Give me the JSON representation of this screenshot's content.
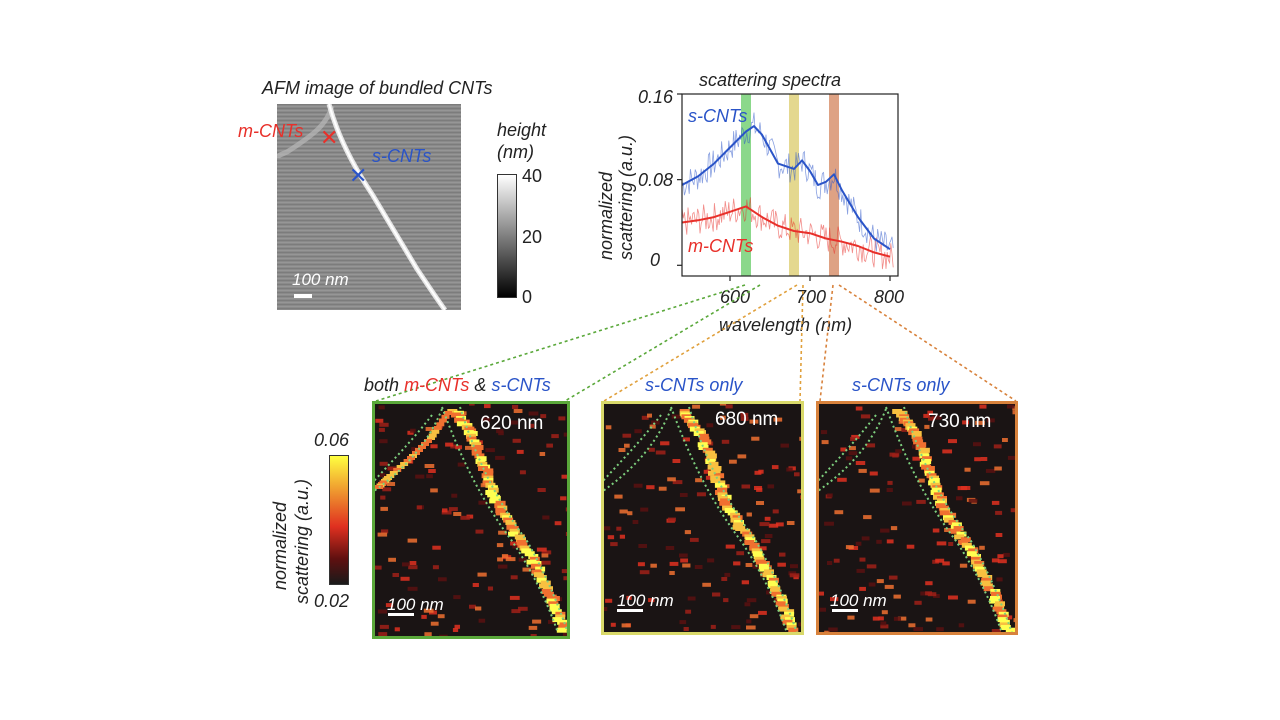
{
  "afm": {
    "title": "AFM image of bundled CNTs",
    "m_label": "m-CNTs",
    "s_label": "s-CNTs",
    "scalebar": "100 nm",
    "colorbar_title_1": "height",
    "colorbar_title_2": "(nm)",
    "colorbar_ticks": [
      "40",
      "20",
      "0"
    ]
  },
  "spectra": {
    "title": "scattering spectra",
    "ylabel_1": "normalized",
    "ylabel_2": "scattering (a.u.)",
    "xlabel": "wavelength (nm)",
    "s_label": "s-CNTs",
    "m_label": "m-CNTs",
    "yticks": [
      "0.16",
      "0.08",
      "0"
    ],
    "xticks": [
      "600",
      "700",
      "800"
    ]
  },
  "chart_data": {
    "type": "line",
    "title": "scattering spectra",
    "xlabel": "wavelength (nm)",
    "ylabel": "normalized scattering (a.u.)",
    "xlim": [
      540,
      810
    ],
    "ylim": [
      -0.01,
      0.16
    ],
    "highlight_bands_nm": [
      620,
      680,
      730
    ],
    "series": [
      {
        "name": "s-CNTs",
        "color": "#2a54c8",
        "x": [
          540,
          560,
          580,
          600,
          620,
          630,
          640,
          660,
          680,
          690,
          700,
          710,
          720,
          730,
          740,
          760,
          780,
          800
        ],
        "y": [
          0.075,
          0.083,
          0.095,
          0.11,
          0.125,
          0.13,
          0.122,
          0.095,
          0.09,
          0.098,
          0.088,
          0.075,
          0.078,
          0.085,
          0.07,
          0.045,
          0.025,
          0.015
        ]
      },
      {
        "name": "m-CNTs",
        "color": "#e8302a",
        "x": [
          540,
          560,
          580,
          600,
          620,
          640,
          660,
          680,
          700,
          720,
          740,
          760,
          780,
          800
        ],
        "y": [
          0.04,
          0.042,
          0.045,
          0.05,
          0.055,
          0.045,
          0.037,
          0.032,
          0.03,
          0.025,
          0.022,
          0.018,
          0.012,
          0.008
        ]
      }
    ]
  },
  "maps": {
    "colorbar_title_1": "normalized",
    "colorbar_title_2": "scattering (a.u.)",
    "colorbar_max": "0.06",
    "colorbar_min": "0.02",
    "scalebar": "100 nm",
    "header_both": "both",
    "header_m": "m-CNTs",
    "header_amp": "&",
    "header_s": "s-CNTs",
    "header_s_only": "s-CNTs only",
    "panels": [
      {
        "wavelength": "620 nm",
        "border": "#5aa83a"
      },
      {
        "wavelength": "680 nm",
        "border": "#d9d96a"
      },
      {
        "wavelength": "730 nm",
        "border": "#d8823c"
      }
    ]
  }
}
